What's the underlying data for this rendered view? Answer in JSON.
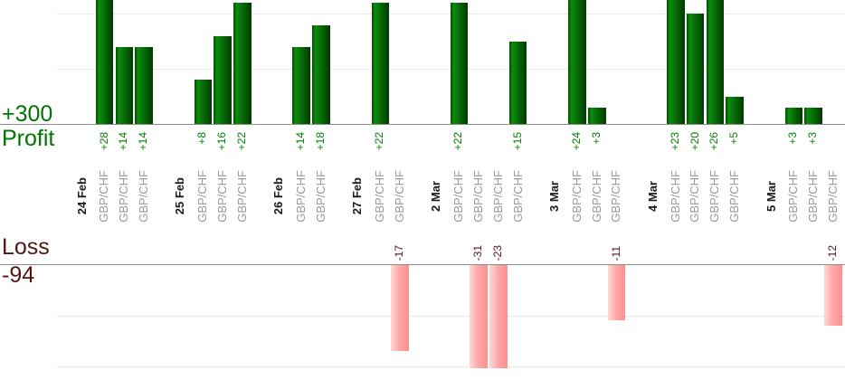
{
  "labels": {
    "profit_total": "+300",
    "profit_axis": "Profit",
    "loss_axis": "Loss",
    "loss_total": "-94"
  },
  "colors": {
    "profit_text": "#007500",
    "profit_value_text": "#008000",
    "loss_text": "#541414",
    "loss_value_text": "#541414",
    "date_text": "#1a1a1a",
    "symbol_text": "#9a9a9a",
    "profit_bar_edge": "#004d00",
    "profit_bar_light": "#0d8c0d",
    "profit_bar_dark": "#003a00",
    "loss_bar_light": "#ffd9d9",
    "loss_bar_mid": "#ffa8a8",
    "loss_bar_dark": "#fa9191",
    "baseline": "#8c8c8c",
    "gridline": "#ebebeb"
  },
  "chart_data": {
    "type": "bar",
    "orientation": "vertical",
    "ylabel_positive": "Profit",
    "ylabel_negative": "Loss",
    "profit_total": 300,
    "loss_total": -94,
    "grid_step": 10,
    "legend": false,
    "note": "Per-trade profit/loss grouped by day; positive bars plotted above upper baseline, negative bars below lower baseline; tall bars clipped by visible area",
    "groups": [
      {
        "date": "24 Feb",
        "trades": [
          {
            "symbol": "GBP/CHF",
            "value": 28,
            "label": "+28"
          },
          {
            "symbol": "GBP/CHF",
            "value": 14,
            "label": "+14"
          },
          {
            "symbol": "GBP/CHF",
            "value": 14,
            "label": "+14"
          }
        ]
      },
      {
        "date": "25 Feb",
        "trades": [
          {
            "symbol": "GBP/CHF",
            "value": 8,
            "label": "+8"
          },
          {
            "symbol": "GBP/CHF",
            "value": 16,
            "label": "+16"
          },
          {
            "symbol": "GBP/CHF",
            "value": 22,
            "label": "+22"
          }
        ]
      },
      {
        "date": "26 Feb",
        "trades": [
          {
            "symbol": "GBP/CHF",
            "value": 14,
            "label": "+14"
          },
          {
            "symbol": "GBP/CHF",
            "value": 18,
            "label": "+18"
          }
        ]
      },
      {
        "date": "27 Feb",
        "trades": [
          {
            "symbol": "GBP/CHF",
            "value": 22,
            "label": "+22"
          },
          {
            "symbol": "GBP/CHF",
            "value": -17,
            "label": "-17"
          }
        ]
      },
      {
        "date": "2 Mar",
        "trades": [
          {
            "symbol": "GBP/CHF",
            "value": 22,
            "label": "+22"
          },
          {
            "symbol": "GBP/CHF",
            "value": -31,
            "label": "-31"
          },
          {
            "symbol": "GBP/CHF",
            "value": -23,
            "label": "-23"
          },
          {
            "symbol": "GBP/CHF",
            "value": 15,
            "label": "+15"
          }
        ]
      },
      {
        "date": "3 Mar",
        "trades": [
          {
            "symbol": "GBP/CHF",
            "value": 24,
            "label": "+24"
          },
          {
            "symbol": "GBP/CHF",
            "value": 3,
            "label": "+3"
          },
          {
            "symbol": "GBP/CHF",
            "value": -11,
            "label": "-11"
          }
        ]
      },
      {
        "date": "4 Mar",
        "trades": [
          {
            "symbol": "GBP/CHF",
            "value": 23,
            "label": "+23"
          },
          {
            "symbol": "GBP/CHF",
            "value": 20,
            "label": "+20"
          },
          {
            "symbol": "GBP/CHF",
            "value": 26,
            "label": "+26"
          },
          {
            "symbol": "GBP/CHF",
            "value": 5,
            "label": "+5"
          }
        ]
      },
      {
        "date": "5 Mar",
        "trades": [
          {
            "symbol": "GBP/CHF",
            "value": 3,
            "label": "+3"
          },
          {
            "symbol": "GBP/CHF",
            "value": 3,
            "label": "+3"
          },
          {
            "symbol": "GBP/CHF",
            "value": -12,
            "label": "-12"
          }
        ]
      }
    ]
  }
}
